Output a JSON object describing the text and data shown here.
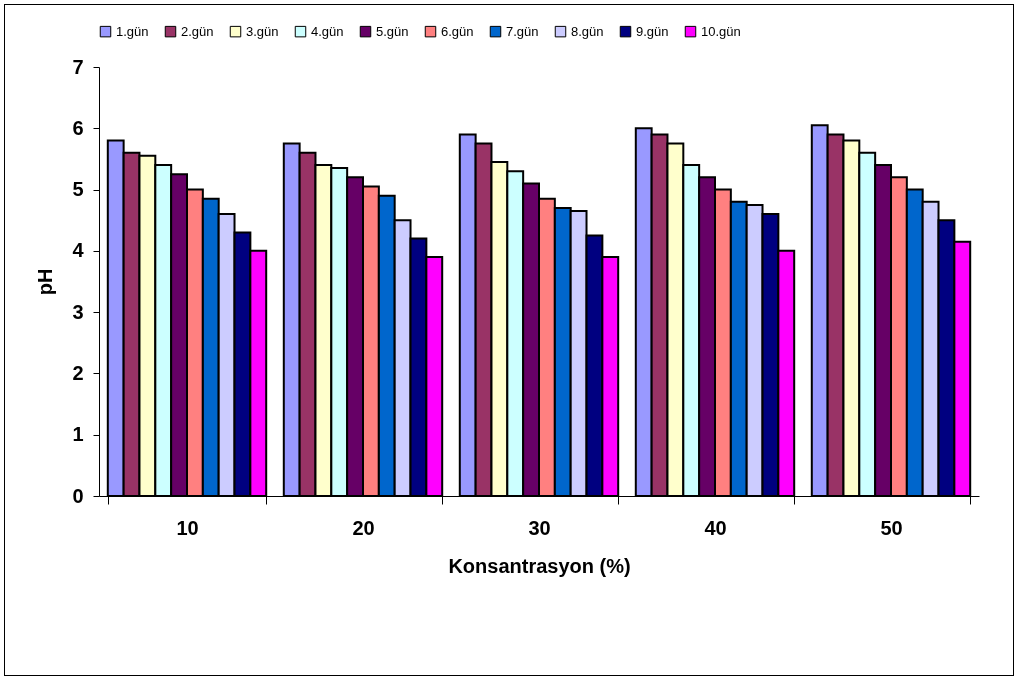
{
  "chart_data": {
    "type": "bar",
    "xlabel": "Konsantrasyon (%)",
    "ylabel": "pH",
    "categories": [
      "10",
      "20",
      "30",
      "40",
      "50"
    ],
    "ylim": [
      0,
      7
    ],
    "yticks": [
      0,
      1,
      2,
      3,
      4,
      5,
      6,
      7
    ],
    "grid": false,
    "legend": "top",
    "series": [
      {
        "name": "1.gün",
        "color": "#9999ff",
        "values": [
          5.8,
          5.75,
          5.9,
          6.0,
          6.05
        ]
      },
      {
        "name": "2.gün",
        "color": "#993366",
        "values": [
          5.6,
          5.6,
          5.75,
          5.9,
          5.9
        ]
      },
      {
        "name": "3.gün",
        "color": "#ffffcc",
        "values": [
          5.55,
          5.4,
          5.45,
          5.75,
          5.8
        ]
      },
      {
        "name": "4.gün",
        "color": "#ccffff",
        "values": [
          5.4,
          5.35,
          5.3,
          5.4,
          5.6
        ]
      },
      {
        "name": "5.gün",
        "color": "#660066",
        "values": [
          5.25,
          5.2,
          5.1,
          5.2,
          5.4
        ]
      },
      {
        "name": "6.gün",
        "color": "#ff8080",
        "values": [
          5.0,
          5.05,
          4.85,
          5.0,
          5.2
        ]
      },
      {
        "name": "7.gün",
        "color": "#0066cc",
        "values": [
          4.85,
          4.9,
          4.7,
          4.8,
          5.0
        ]
      },
      {
        "name": "8.gün",
        "color": "#ccccff",
        "values": [
          4.6,
          4.5,
          4.65,
          4.75,
          4.8
        ]
      },
      {
        "name": "9.gün",
        "color": "#000080",
        "values": [
          4.3,
          4.2,
          4.25,
          4.6,
          4.5
        ]
      },
      {
        "name": "10.gün",
        "color": "#ff00ff",
        "values": [
          4.0,
          3.9,
          3.9,
          4.0,
          4.15
        ]
      }
    ]
  }
}
